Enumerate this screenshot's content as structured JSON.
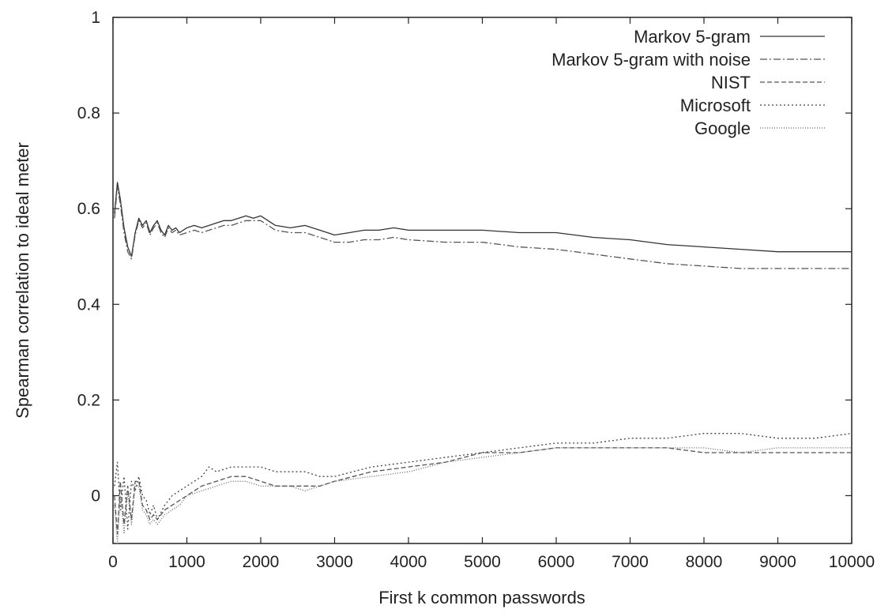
{
  "chart_data": {
    "type": "line",
    "title": "",
    "xlabel": "First k common passwords",
    "ylabel": "Spearman correlation to ideal meter",
    "xlim": [
      0,
      10000
    ],
    "ylim": [
      -0.1,
      1
    ],
    "xticks": [
      0,
      1000,
      2000,
      3000,
      4000,
      5000,
      6000,
      7000,
      8000,
      9000,
      10000
    ],
    "yticks": [
      {
        "value": 0,
        "label": "0"
      },
      {
        "value": 0.2,
        "label": "0.2"
      },
      {
        "value": 0.4,
        "label": "0.4"
      },
      {
        "value": 0.6,
        "label": "0.6"
      },
      {
        "value": 0.8,
        "label": "0.8"
      },
      {
        "value": 1,
        "label": "1"
      }
    ],
    "grid": false,
    "legend_position": "top-right",
    "series": [
      {
        "name": "Markov 5-gram",
        "dash": "solid",
        "color": "#333333",
        "x": [
          20,
          60,
          100,
          150,
          200,
          250,
          300,
          350,
          400,
          450,
          500,
          550,
          600,
          650,
          700,
          750,
          800,
          850,
          900,
          1000,
          1100,
          1200,
          1300,
          1400,
          1500,
          1600,
          1700,
          1800,
          1900,
          2000,
          2200,
          2400,
          2600,
          2800,
          3000,
          3200,
          3400,
          3600,
          3800,
          4000,
          4500,
          5000,
          5500,
          6000,
          6500,
          7000,
          7500,
          8000,
          8500,
          9000,
          9500,
          10000
        ],
        "y": [
          0.59,
          0.655,
          0.62,
          0.56,
          0.52,
          0.5,
          0.55,
          0.58,
          0.565,
          0.575,
          0.55,
          0.565,
          0.575,
          0.555,
          0.545,
          0.565,
          0.555,
          0.56,
          0.55,
          0.56,
          0.565,
          0.56,
          0.565,
          0.57,
          0.575,
          0.575,
          0.58,
          0.585,
          0.58,
          0.585,
          0.565,
          0.56,
          0.565,
          0.555,
          0.545,
          0.55,
          0.555,
          0.555,
          0.56,
          0.555,
          0.555,
          0.555,
          0.55,
          0.55,
          0.54,
          0.535,
          0.525,
          0.52,
          0.515,
          0.51,
          0.51,
          0.51
        ]
      },
      {
        "name": "Markov 5-gram with noise",
        "dash": "dashdot",
        "color": "#555555",
        "x": [
          20,
          60,
          100,
          150,
          200,
          250,
          300,
          350,
          400,
          450,
          500,
          550,
          600,
          650,
          700,
          750,
          800,
          850,
          900,
          1000,
          1100,
          1200,
          1300,
          1400,
          1500,
          1600,
          1700,
          1800,
          1900,
          2000,
          2200,
          2400,
          2600,
          2800,
          3000,
          3200,
          3400,
          3600,
          3800,
          4000,
          4500,
          5000,
          5500,
          6000,
          6500,
          7000,
          7500,
          8000,
          8500,
          9000,
          9500,
          10000
        ],
        "y": [
          0.58,
          0.645,
          0.61,
          0.55,
          0.51,
          0.495,
          0.545,
          0.575,
          0.56,
          0.57,
          0.545,
          0.56,
          0.57,
          0.55,
          0.54,
          0.56,
          0.55,
          0.555,
          0.545,
          0.55,
          0.555,
          0.55,
          0.555,
          0.56,
          0.565,
          0.565,
          0.57,
          0.575,
          0.575,
          0.575,
          0.555,
          0.55,
          0.55,
          0.54,
          0.53,
          0.53,
          0.535,
          0.535,
          0.54,
          0.535,
          0.53,
          0.53,
          0.52,
          0.515,
          0.505,
          0.495,
          0.485,
          0.48,
          0.475,
          0.475,
          0.475,
          0.475
        ]
      },
      {
        "name": "NIST",
        "dash": "dashed",
        "color": "#555555",
        "x": [
          20,
          60,
          100,
          150,
          200,
          250,
          300,
          350,
          400,
          450,
          500,
          550,
          600,
          700,
          800,
          900,
          1000,
          1200,
          1400,
          1600,
          1800,
          2000,
          2200,
          2400,
          2600,
          2800,
          3000,
          3500,
          4000,
          4500,
          5000,
          5500,
          6000,
          6500,
          7000,
          7500,
          8000,
          8500,
          9000,
          9500,
          10000
        ],
        "y": [
          0.0,
          -0.08,
          0.03,
          -0.06,
          0.02,
          -0.05,
          0.03,
          0.03,
          -0.02,
          -0.03,
          -0.05,
          -0.04,
          -0.05,
          -0.03,
          -0.02,
          -0.01,
          0.0,
          0.02,
          0.03,
          0.04,
          0.04,
          0.03,
          0.02,
          0.02,
          0.02,
          0.02,
          0.03,
          0.05,
          0.06,
          0.07,
          0.09,
          0.09,
          0.1,
          0.1,
          0.1,
          0.1,
          0.09,
          0.09,
          0.09,
          0.09,
          0.09
        ]
      },
      {
        "name": "Microsoft",
        "dash": "dotted",
        "color": "#444444",
        "x": [
          20,
          60,
          100,
          150,
          200,
          250,
          300,
          350,
          400,
          450,
          500,
          550,
          600,
          700,
          800,
          900,
          1000,
          1200,
          1300,
          1400,
          1600,
          1800,
          2000,
          2200,
          2400,
          2600,
          2800,
          3000,
          3500,
          4000,
          4500,
          5000,
          5500,
          6000,
          6500,
          7000,
          7500,
          8000,
          8500,
          9000,
          9500,
          10000
        ],
        "y": [
          0.02,
          0.07,
          -0.03,
          0.04,
          -0.07,
          0.03,
          0.01,
          0.04,
          0.0,
          -0.01,
          -0.04,
          -0.02,
          -0.05,
          -0.02,
          0.0,
          0.01,
          0.02,
          0.04,
          0.06,
          0.05,
          0.06,
          0.06,
          0.06,
          0.05,
          0.05,
          0.05,
          0.04,
          0.04,
          0.06,
          0.07,
          0.08,
          0.09,
          0.1,
          0.11,
          0.11,
          0.12,
          0.12,
          0.13,
          0.13,
          0.12,
          0.12,
          0.13
        ]
      },
      {
        "name": "Google",
        "dash": "densedot",
        "color": "#666666",
        "x": [
          20,
          60,
          100,
          150,
          200,
          250,
          300,
          350,
          400,
          450,
          500,
          550,
          600,
          700,
          800,
          900,
          1000,
          1200,
          1400,
          1600,
          1800,
          2000,
          2200,
          2400,
          2600,
          2800,
          3000,
          3500,
          4000,
          4500,
          5000,
          5500,
          6000,
          6500,
          7000,
          7500,
          8000,
          8500,
          9000,
          9500,
          10000
        ],
        "y": [
          -0.02,
          -0.1,
          0.0,
          -0.08,
          0.01,
          -0.06,
          0.02,
          0.02,
          -0.03,
          -0.04,
          -0.06,
          -0.05,
          -0.06,
          -0.04,
          -0.03,
          -0.02,
          0.0,
          0.01,
          0.02,
          0.03,
          0.03,
          0.02,
          0.02,
          0.02,
          0.01,
          0.02,
          0.03,
          0.04,
          0.05,
          0.07,
          0.08,
          0.09,
          0.1,
          0.1,
          0.1,
          0.1,
          0.1,
          0.09,
          0.1,
          0.1,
          0.1
        ]
      }
    ]
  }
}
